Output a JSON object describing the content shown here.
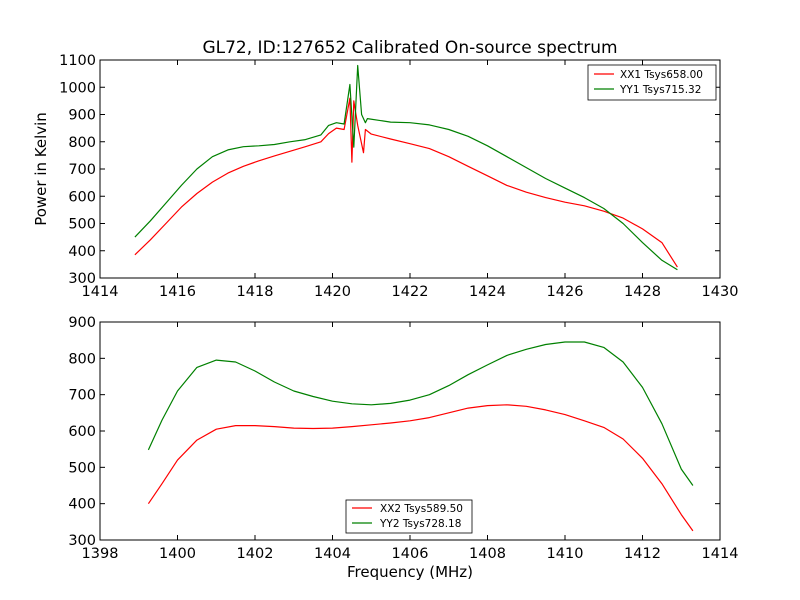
{
  "chart_data": [
    {
      "type": "line",
      "title": "GL72, ID:127652 Calibrated On-source spectrum",
      "xlabel": "",
      "ylabel": "Power in Kelvin",
      "xlim": [
        1414,
        1430
      ],
      "ylim": [
        300,
        1100
      ],
      "xticks": [
        1414,
        1416,
        1418,
        1420,
        1422,
        1424,
        1426,
        1428,
        1430
      ],
      "yticks": [
        300,
        400,
        500,
        600,
        700,
        800,
        900,
        1000,
        1100
      ],
      "legend_position": "top-right",
      "series": [
        {
          "name": "XX1 Tsys658.00",
          "color": "#ff0000",
          "points": [
            [
              1414.9,
              385
            ],
            [
              1415.3,
              440
            ],
            [
              1415.7,
              500
            ],
            [
              1416.1,
              560
            ],
            [
              1416.5,
              610
            ],
            [
              1416.9,
              652
            ],
            [
              1417.3,
              685
            ],
            [
              1417.7,
              710
            ],
            [
              1418.1,
              730
            ],
            [
              1418.5,
              748
            ],
            [
              1418.9,
              765
            ],
            [
              1419.3,
              782
            ],
            [
              1419.7,
              800
            ],
            [
              1419.9,
              830
            ],
            [
              1420.1,
              850
            ],
            [
              1420.3,
              845
            ],
            [
              1420.45,
              960
            ],
            [
              1420.5,
              725
            ],
            [
              1420.55,
              950
            ],
            [
              1420.65,
              860
            ],
            [
              1420.8,
              760
            ],
            [
              1420.85,
              845
            ],
            [
              1421.0,
              828
            ],
            [
              1421.5,
              810
            ],
            [
              1422.0,
              793
            ],
            [
              1422.5,
              775
            ],
            [
              1423.0,
              745
            ],
            [
              1423.5,
              710
            ],
            [
              1424.0,
              675
            ],
            [
              1424.5,
              640
            ],
            [
              1425.0,
              615
            ],
            [
              1425.5,
              595
            ],
            [
              1426.0,
              578
            ],
            [
              1426.5,
              565
            ],
            [
              1427.0,
              545
            ],
            [
              1427.5,
              520
            ],
            [
              1428.0,
              480
            ],
            [
              1428.5,
              430
            ],
            [
              1428.9,
              340
            ]
          ]
        },
        {
          "name": "YY1 Tsys715.32",
          "color": "#008000",
          "points": [
            [
              1414.9,
              450
            ],
            [
              1415.3,
              510
            ],
            [
              1415.7,
              575
            ],
            [
              1416.1,
              640
            ],
            [
              1416.5,
              700
            ],
            [
              1416.9,
              745
            ],
            [
              1417.3,
              770
            ],
            [
              1417.7,
              782
            ],
            [
              1418.1,
              785
            ],
            [
              1418.5,
              790
            ],
            [
              1418.9,
              800
            ],
            [
              1419.3,
              808
            ],
            [
              1419.7,
              825
            ],
            [
              1419.9,
              860
            ],
            [
              1420.1,
              870
            ],
            [
              1420.3,
              865
            ],
            [
              1420.45,
              1010
            ],
            [
              1420.55,
              780
            ],
            [
              1420.65,
              1080
            ],
            [
              1420.75,
              900
            ],
            [
              1420.85,
              870
            ],
            [
              1420.9,
              885
            ],
            [
              1421.5,
              872
            ],
            [
              1422.0,
              870
            ],
            [
              1422.5,
              862
            ],
            [
              1423.0,
              845
            ],
            [
              1423.5,
              820
            ],
            [
              1424.0,
              785
            ],
            [
              1424.5,
              745
            ],
            [
              1425.0,
              705
            ],
            [
              1425.5,
              665
            ],
            [
              1426.0,
              630
            ],
            [
              1426.5,
              595
            ],
            [
              1427.0,
              555
            ],
            [
              1427.5,
              500
            ],
            [
              1428.0,
              430
            ],
            [
              1428.5,
              365
            ],
            [
              1428.9,
              330
            ]
          ]
        }
      ]
    },
    {
      "type": "line",
      "title": "",
      "xlabel": "Frequency (MHz)",
      "ylabel": "",
      "xlim": [
        1398,
        1414
      ],
      "ylim": [
        300,
        900
      ],
      "xticks": [
        1398,
        1400,
        1402,
        1404,
        1406,
        1408,
        1410,
        1412,
        1414
      ],
      "yticks": [
        300,
        400,
        500,
        600,
        700,
        800,
        900
      ],
      "legend_position": "lower-center",
      "series": [
        {
          "name": "XX2 Tsys589.50",
          "color": "#ff0000",
          "points": [
            [
              1399.25,
              400
            ],
            [
              1399.6,
              455
            ],
            [
              1400.0,
              520
            ],
            [
              1400.5,
              575
            ],
            [
              1401.0,
              605
            ],
            [
              1401.5,
              615
            ],
            [
              1402.0,
              615
            ],
            [
              1402.5,
              612
            ],
            [
              1403.0,
              608
            ],
            [
              1403.5,
              607
            ],
            [
              1404.0,
              608
            ],
            [
              1404.5,
              612
            ],
            [
              1405.0,
              617
            ],
            [
              1405.5,
              622
            ],
            [
              1406.0,
              628
            ],
            [
              1406.5,
              637
            ],
            [
              1407.0,
              650
            ],
            [
              1407.5,
              663
            ],
            [
              1408.0,
              670
            ],
            [
              1408.5,
              672
            ],
            [
              1409.0,
              668
            ],
            [
              1409.5,
              658
            ],
            [
              1410.0,
              645
            ],
            [
              1410.5,
              628
            ],
            [
              1411.0,
              610
            ],
            [
              1411.5,
              578
            ],
            [
              1412.0,
              525
            ],
            [
              1412.5,
              455
            ],
            [
              1413.0,
              370
            ],
            [
              1413.3,
              325
            ]
          ]
        },
        {
          "name": "YY2 Tsys728.18",
          "color": "#008000",
          "points": [
            [
              1399.25,
              548
            ],
            [
              1399.6,
              630
            ],
            [
              1400.0,
              710
            ],
            [
              1400.5,
              775
            ],
            [
              1401.0,
              795
            ],
            [
              1401.5,
              790
            ],
            [
              1402.0,
              765
            ],
            [
              1402.5,
              735
            ],
            [
              1403.0,
              710
            ],
            [
              1403.5,
              695
            ],
            [
              1404.0,
              682
            ],
            [
              1404.5,
              675
            ],
            [
              1405.0,
              672
            ],
            [
              1405.5,
              676
            ],
            [
              1406.0,
              685
            ],
            [
              1406.5,
              700
            ],
            [
              1407.0,
              725
            ],
            [
              1407.5,
              755
            ],
            [
              1408.0,
              782
            ],
            [
              1408.5,
              808
            ],
            [
              1409.0,
              825
            ],
            [
              1409.5,
              838
            ],
            [
              1410.0,
              845
            ],
            [
              1410.5,
              845
            ],
            [
              1411.0,
              830
            ],
            [
              1411.5,
              790
            ],
            [
              1412.0,
              720
            ],
            [
              1412.5,
              620
            ],
            [
              1413.0,
              495
            ],
            [
              1413.3,
              450
            ]
          ]
        }
      ]
    }
  ]
}
